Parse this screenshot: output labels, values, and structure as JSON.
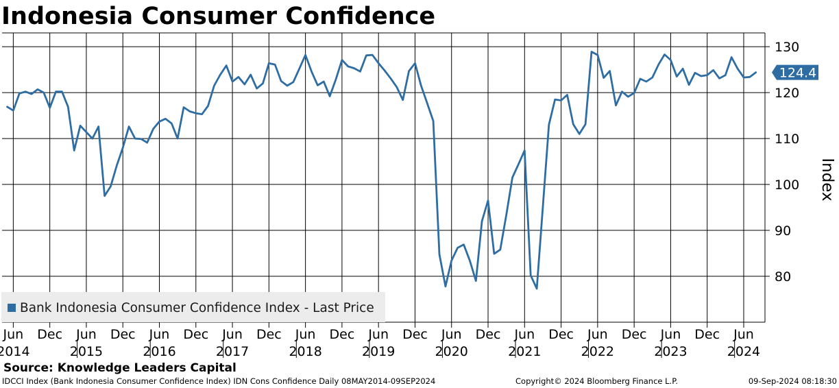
{
  "chart_data": {
    "type": "line",
    "title": "Indonesia Consumer Confidence",
    "ylabel": "Index",
    "xlabel": "",
    "ylim": [
      70,
      133
    ],
    "yticks": [
      80,
      90,
      100,
      110,
      120,
      130
    ],
    "x_start": "2014-05",
    "grid": true,
    "legend": "bottom-left",
    "last_value_label": "124.4",
    "x_tick_labels": [
      {
        "label": "Jun",
        "index": 1
      },
      {
        "label": "Dec",
        "index": 7
      },
      {
        "label": "Jun",
        "index": 13
      },
      {
        "label": "Dec",
        "index": 19
      },
      {
        "label": "Jun",
        "index": 25
      },
      {
        "label": "Dec",
        "index": 31
      },
      {
        "label": "Jun",
        "index": 37
      },
      {
        "label": "Dec",
        "index": 43
      },
      {
        "label": "Jun",
        "index": 49
      },
      {
        "label": "Dec",
        "index": 55
      },
      {
        "label": "Jun",
        "index": 61
      },
      {
        "label": "Dec",
        "index": 67
      },
      {
        "label": "Jun",
        "index": 73
      },
      {
        "label": "Dec",
        "index": 79
      },
      {
        "label": "Jun",
        "index": 85
      },
      {
        "label": "Dec",
        "index": 91
      },
      {
        "label": "Jun",
        "index": 97
      },
      {
        "label": "Dec",
        "index": 103
      },
      {
        "label": "Jun",
        "index": 109
      },
      {
        "label": "Dec",
        "index": 115
      },
      {
        "label": "Jun",
        "index": 121
      }
    ],
    "year_labels": [
      {
        "label": "2014",
        "index": 1
      },
      {
        "label": "2015",
        "index": 13
      },
      {
        "label": "2016",
        "index": 25
      },
      {
        "label": "2017",
        "index": 37
      },
      {
        "label": "2018",
        "index": 49
      },
      {
        "label": "2019",
        "index": 61
      },
      {
        "label": "2020",
        "index": 73
      },
      {
        "label": "2021",
        "index": 85
      },
      {
        "label": "2022",
        "index": 97
      },
      {
        "label": "2023",
        "index": 109
      },
      {
        "label": "2024",
        "index": 121
      }
    ],
    "series": [
      {
        "name": "Bank Indonesia Consumer Confidence Index - Last Price",
        "color": "#2e6da4",
        "values": [
          116.9,
          116.1,
          119.8,
          120.2,
          119.7,
          120.7,
          120.0,
          116.7,
          120.2,
          120.2,
          116.9,
          107.4,
          112.8,
          111.4,
          110.0,
          112.6,
          97.5,
          99.6,
          104.1,
          108.0,
          112.6,
          110.0,
          109.9,
          109.1,
          112.1,
          113.7,
          114.3,
          113.3,
          110.0,
          116.8,
          115.9,
          115.5,
          115.3,
          117.1,
          121.5,
          123.9,
          125.9,
          122.4,
          123.4,
          121.8,
          123.9,
          120.9,
          122.0,
          126.4,
          126.1,
          122.5,
          121.5,
          122.3,
          125.2,
          128.2,
          124.6,
          121.6,
          122.4,
          119.2,
          122.9,
          127.1,
          125.7,
          125.3,
          124.6,
          128.1,
          128.2,
          126.4,
          124.8,
          123.1,
          121.2,
          118.4,
          124.7,
          126.4,
          121.5,
          117.7,
          113.8,
          84.8,
          77.8,
          83.4,
          86.2,
          86.9,
          83.4,
          79.0,
          92.0,
          96.5,
          84.9,
          85.8,
          93.4,
          101.5,
          104.4,
          107.4,
          80.2,
          77.3,
          95.0,
          113.0,
          118.5,
          118.3,
          119.5,
          113.1,
          111.0,
          113.1,
          128.9,
          128.2,
          123.2,
          124.7,
          117.2,
          120.2,
          119.1,
          119.9,
          123.0,
          122.4,
          123.3,
          126.1,
          128.3,
          127.1,
          123.5,
          125.2,
          121.7,
          124.3,
          123.6,
          123.8,
          124.9,
          123.1,
          123.8,
          127.7,
          125.2,
          123.3,
          123.4,
          124.4
        ]
      }
    ]
  },
  "legend_label": "Bank Indonesia Consumer Confidence Index - Last Price",
  "source": "Source: Knowledge Leaders Capital",
  "footer": {
    "left": "IDCCI Index (Bank Indonesia Consumer Confidence Index) IDN Cons Confidence  Daily 08MAY2014-09SEP2024",
    "middle": "Copyright© 2024 Bloomberg Finance L.P.",
    "right": "09-Sep-2024 08:18:30"
  }
}
